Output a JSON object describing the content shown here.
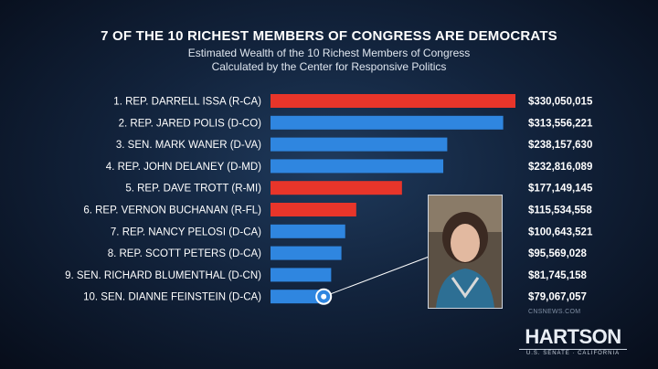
{
  "chart_data": {
    "type": "bar",
    "orientation": "horizontal",
    "title": "7 OF THE 10 RICHEST MEMBERS OF CONGRESS ARE DEMOCRATS",
    "subtitle_lines": [
      "Estimated Wealth of the 10 Richest Members of Congress",
      "Calculated by the Center for Responsive Politics"
    ],
    "categories": [
      "1. REP. DARRELL ISSA (R-CA)",
      "2. REP. JARED POLIS (D-CO)",
      "3. SEN. MARK WANER (D-VA)",
      "4. REP. JOHN DELANEY (D-MD)",
      "5. REP. DAVE TROTT (R-MI)",
      "6. REP. VERNON BUCHANAN (R-FL)",
      "7. REP. NANCY PELOSI (D-CA)",
      "8. REP. SCOTT PETERS (D-CA)",
      "9. SEN. RICHARD BLUMENTHAL (D-CN)",
      "10. SEN. DIANNE FEINSTEIN (D-CA)"
    ],
    "values": [
      330050015,
      313556221,
      238157630,
      232816089,
      177149145,
      115534558,
      100643521,
      95569028,
      81745158,
      79067057
    ],
    "value_labels": [
      "$330,050,015",
      "$313,556,221",
      "$238,157,630",
      "$232,816,089",
      "$177,149,145",
      "$115,534,558",
      "$100,643,521",
      "$95,569,028",
      "$81,745,158",
      "$79,067,057"
    ],
    "party": [
      "R",
      "D",
      "D",
      "D",
      "R",
      "R",
      "D",
      "D",
      "D",
      "D"
    ],
    "colors": {
      "R": "#e8352a",
      "D": "#2f86e0"
    },
    "xlim": [
      0,
      330050015
    ],
    "grid": false,
    "legend": "none",
    "highlight_index": 9
  },
  "source_label": "CNSNEWS.COM",
  "logo": {
    "name": "HARTSON",
    "tagline": "U.S. SENATE · CALIFORNIA"
  }
}
